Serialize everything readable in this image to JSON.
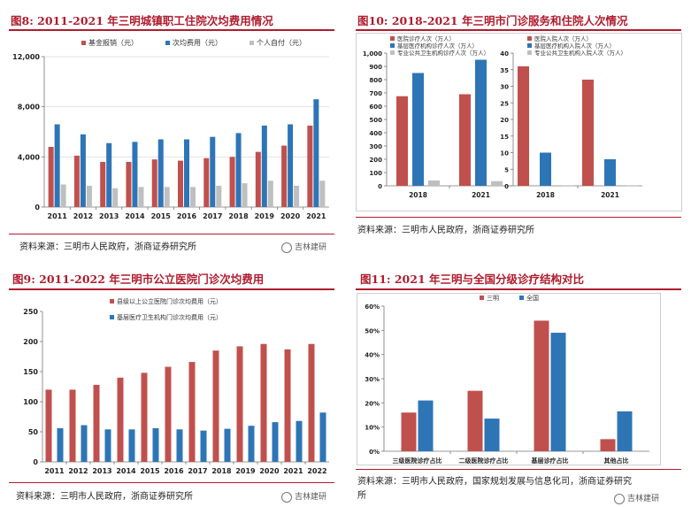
{
  "colors": {
    "red": "#c0504d",
    "blue": "#2e75b6",
    "gray": "#bfbfbf",
    "title_red": "#b01c2e"
  },
  "watermark": "吉林建研",
  "panel1": {
    "title": "图8:   2011-2021 年三明城镇职工住院次均费用情况",
    "source": "资料来源：三明市人民政府，浙商证券研究所"
  },
  "panel2": {
    "title": "图10:   2018-2021 年三明市门诊服务和住院人次情况",
    "source": "资料来源：三明市人民政府，浙商证券研究所"
  },
  "panel3": {
    "title": "图9:   2011-2022 年三明市公立医院门诊次均费用",
    "source": "资料来源：三明市人民政府，浙商证券研究所"
  },
  "panel4": {
    "title": "图11:   2021 年三明与全国分级诊疗结构对比",
    "source_line1": "资料来源：三明市人民政府，国家规划发展与信息化司，浙商证券研究",
    "source_line2": "所"
  },
  "chart_data": [
    {
      "type": "bar",
      "categories": [
        "2011",
        "2012",
        "2013",
        "2014",
        "2015",
        "2016",
        "2017",
        "2018",
        "2019",
        "2020",
        "2021"
      ],
      "series": [
        {
          "name": "基金报销（元）",
          "color": "#c0504d",
          "values": [
            4800,
            4100,
            3600,
            3600,
            3800,
            3700,
            3900,
            4000,
            4400,
            4900,
            6500
          ]
        },
        {
          "name": "次均费用（元）",
          "color": "#2e75b6",
          "values": [
            6600,
            5800,
            5100,
            5200,
            5400,
            5400,
            5600,
            5900,
            6500,
            6600,
            8600
          ]
        },
        {
          "name": "个人自付（元）",
          "color": "#bfbfbf",
          "values": [
            1800,
            1700,
            1500,
            1600,
            1600,
            1600,
            1700,
            1900,
            2100,
            1700,
            2100
          ]
        }
      ],
      "ylim": [
        0,
        12000
      ],
      "yticks": [
        "0",
        "4,000",
        "8,000",
        "12,000"
      ],
      "ytick_values": [
        0,
        4000,
        8000,
        12000
      ],
      "legend": "top",
      "title": "",
      "xlabel": "",
      "ylabel": ""
    },
    {
      "type": "bar",
      "categories": [
        "2018",
        "2021"
      ],
      "series": [
        {
          "name": "医院诊疗人次（万人）",
          "color": "#c0504d",
          "values": [
            675,
            690
          ]
        },
        {
          "name": "基层医疗机构诊疗人次（万人）",
          "color": "#2e75b6",
          "values": [
            850,
            950
          ]
        },
        {
          "name": "专业公共卫生机构诊疗人次（万人）",
          "color": "#bfbfbf",
          "values": [
            40,
            35
          ]
        }
      ],
      "ylim": [
        0,
        1000
      ],
      "yticks": [
        "0",
        "100",
        "200",
        "300",
        "400",
        "500",
        "600",
        "700",
        "800",
        "900",
        "1,000"
      ],
      "ytick_values": [
        0,
        100,
        200,
        300,
        400,
        500,
        600,
        700,
        800,
        900,
        1000
      ],
      "legend": "top-left",
      "title": "",
      "xlabel": "",
      "ylabel": ""
    },
    {
      "type": "bar",
      "categories": [
        "2018",
        "2021"
      ],
      "series": [
        {
          "name": "医院入院人次（万人）",
          "color": "#c0504d",
          "values": [
            36,
            32
          ]
        },
        {
          "name": "基层医疗机构入院人次（万人）",
          "color": "#2e75b6",
          "values": [
            10,
            8
          ]
        },
        {
          "name": "专业公共卫生机构入院人次（万人）",
          "color": "#bfbfbf",
          "values": [
            0.1,
            0.1
          ]
        }
      ],
      "ylim": [
        0,
        40
      ],
      "yticks": [
        "0",
        "5",
        "10",
        "15",
        "20",
        "25",
        "30",
        "35",
        "40"
      ],
      "ytick_values": [
        0,
        5,
        10,
        15,
        20,
        25,
        30,
        35,
        40
      ],
      "legend": "top-left",
      "title": "",
      "xlabel": "",
      "ylabel": ""
    },
    {
      "type": "bar",
      "categories": [
        "2011",
        "2012",
        "2013",
        "2014",
        "2015",
        "2016",
        "2017",
        "2018",
        "2019",
        "2020",
        "2021",
        "2022"
      ],
      "series": [
        {
          "name": "县级以上公立医院门诊次均费用（元）",
          "color": "#c0504d",
          "values": [
            120,
            120,
            128,
            140,
            148,
            158,
            166,
            185,
            192,
            196,
            187,
            196
          ]
        },
        {
          "name": "基层医疗卫生机构门诊次均费用（元）",
          "color": "#2e75b6",
          "values": [
            56,
            61,
            54,
            54,
            56,
            54,
            52,
            55,
            60,
            66,
            68,
            82
          ]
        }
      ],
      "ylim": [
        0,
        250
      ],
      "yticks": [
        "0",
        "50",
        "100",
        "150",
        "200",
        "250"
      ],
      "ytick_values": [
        0,
        50,
        100,
        150,
        200,
        250
      ],
      "legend": "top-left",
      "title": "",
      "xlabel": "",
      "ylabel": ""
    },
    {
      "type": "bar",
      "categories": [
        "三级医院诊疗占比",
        "二级医院诊疗占比",
        "基层诊疗占比",
        "其他占比"
      ],
      "series": [
        {
          "name": "三明",
          "color": "#c0504d",
          "values": [
            16,
            25,
            54,
            5
          ]
        },
        {
          "name": "全国",
          "color": "#2e75b6",
          "values": [
            21,
            13.5,
            49,
            16.5
          ]
        }
      ],
      "ylim": [
        0,
        60
      ],
      "yticks": [
        "0%",
        "10%",
        "20%",
        "30%",
        "40%",
        "50%",
        "60%"
      ],
      "ytick_values": [
        0,
        10,
        20,
        30,
        40,
        50,
        60
      ],
      "legend": "top-left",
      "title": "",
      "xlabel": "",
      "ylabel": ""
    }
  ]
}
